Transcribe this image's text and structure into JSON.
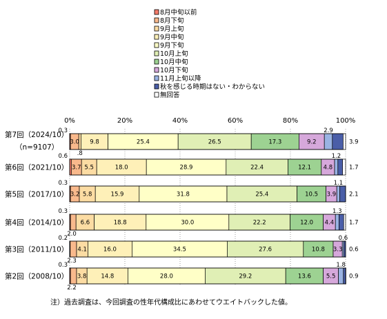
{
  "chart_data": {
    "type": "bar",
    "orientation": "horizontal",
    "stacked": true,
    "xlim": [
      0,
      100
    ],
    "ticks": [
      "0%",
      "20%",
      "40%",
      "60%",
      "80%",
      "100%"
    ],
    "categories": [
      {
        "label": "第7回（2024/10）",
        "sublabel": "（n=9107）"
      },
      {
        "label": "第6回（2021/10）"
      },
      {
        "label": "第5回（2017/10）"
      },
      {
        "label": "第4回（2014/10）"
      },
      {
        "label": "第3回（2011/10）"
      },
      {
        "label": "第2回（2008/10）"
      }
    ],
    "series": [
      {
        "name": "8月中旬以前",
        "color": "#f47b6a",
        "values": [
          0.3,
          0.6,
          0.3,
          0.3,
          0.2,
          0.3
        ]
      },
      {
        "name": "8月下旬",
        "color": "#f9b98c",
        "values": [
          3.0,
          3.7,
          3.2,
          2.0,
          2.3,
          2.2
        ]
      },
      {
        "name": "9月上旬",
        "color": "#fcdca3",
        "values": [
          0.8,
          5.5,
          5.8,
          6.6,
          4.1,
          3.8
        ]
      },
      {
        "name": "9月中旬",
        "color": "#fef0b8",
        "values": [
          9.8,
          18.0,
          15.9,
          18.8,
          16.0,
          14.8
        ]
      },
      {
        "name": "9月下旬",
        "color": "#ffffc7",
        "values": [
          25.4,
          28.9,
          31.8,
          30.0,
          34.5,
          28.0
        ]
      },
      {
        "name": "10月上旬",
        "color": "#e0efb5",
        "values": [
          26.5,
          22.4,
          25.4,
          22.2,
          27.6,
          29.2
        ]
      },
      {
        "name": "10月中旬",
        "color": "#9dd292",
        "values": [
          17.3,
          12.1,
          10.5,
          12.0,
          10.8,
          13.6
        ]
      },
      {
        "name": "10月下旬",
        "color": "#d6a8db",
        "values": [
          9.2,
          4.8,
          3.9,
          4.4,
          3.3,
          5.5
        ]
      },
      {
        "name": "11月上旬以降",
        "color": "#9ab3e3",
        "values": [
          2.9,
          1.2,
          1.1,
          1.3,
          0.6,
          1.8
        ]
      },
      {
        "name": "秋を感じる時期はない・わからない",
        "color": "#4a5ea8",
        "values": [
          3.9,
          1.7,
          2.1,
          1.7,
          0.6,
          0.9
        ]
      },
      {
        "name": "無回答",
        "color": "#ffffff",
        "values": [
          0.0,
          0.0,
          0.0,
          0.0,
          0.0,
          0.0
        ]
      }
    ],
    "data_labels": [
      [
        "0.3",
        "3.0",
        ".8",
        "9.8",
        "25.4",
        "26.5",
        "17.3",
        "9.2",
        "2.9",
        "3.9"
      ],
      [
        "0.6",
        "3.7",
        "5.5",
        "18.0",
        "28.9",
        "22.4",
        "12.1",
        "4.8",
        "1.2",
        "1.7"
      ],
      [
        "0.3",
        "3.2",
        "5.8",
        "15.9",
        "31.8",
        "25.4",
        "10.5",
        "3.9",
        "1.1",
        "2.1"
      ],
      [
        "0.3",
        "2.0",
        "6.6",
        "18.8",
        "30.0",
        "22.2",
        "12.0",
        "4.4",
        "1.3",
        "1.7"
      ],
      [
        "0.2",
        "2.3",
        "4.1",
        "16.0",
        "34.5",
        "27.6",
        "10.8",
        "3.3",
        "0.6",
        "0.6"
      ],
      [
        "0.3",
        "2.2",
        "3.8",
        "14.8",
        "28.0",
        "29.2",
        "13.6",
        "5.5",
        "1.8",
        "0.9"
      ]
    ],
    "legend_position": "top",
    "grid": "dotted vertical at ticks"
  },
  "note": "注）過去調査は、今回調査の性年代構成比にあわせてウエイトバックした値。"
}
